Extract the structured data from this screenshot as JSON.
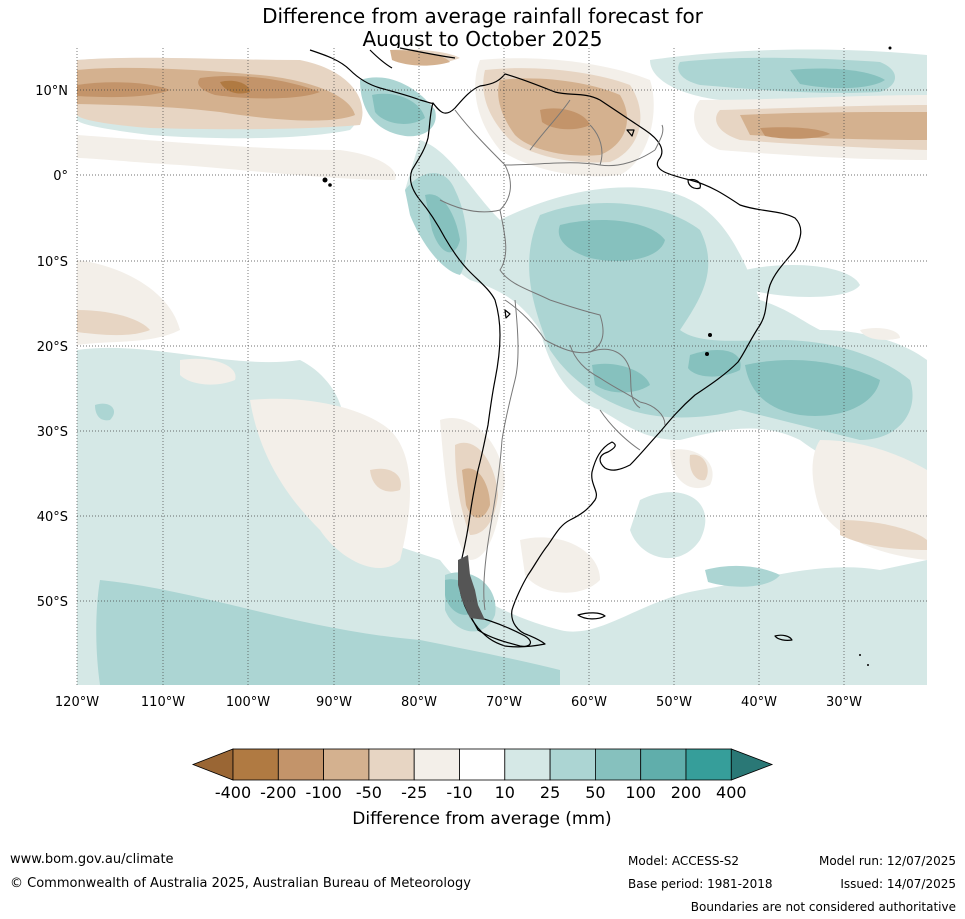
{
  "title": {
    "line1": "Difference from average rainfall forecast for",
    "line2": "August to October 2025"
  },
  "map": {
    "lat_labels": [
      "10°N",
      "0°",
      "10°S",
      "20°S",
      "30°S",
      "40°S",
      "50°S"
    ],
    "lon_labels": [
      "120°W",
      "110°W",
      "100°W",
      "90°W",
      "80°W",
      "70°W",
      "60°W",
      "50°W",
      "40°W",
      "30°W"
    ],
    "gridlines": "dotted"
  },
  "colorbar": {
    "labels": [
      "-400",
      "-200",
      "-100",
      "-50",
      "-25",
      "-10",
      "10",
      "25",
      "50",
      "100",
      "200",
      "400"
    ],
    "colors": [
      "#9a6634",
      "#b07a42",
      "#c3946a",
      "#d4b18f",
      "#e7d5c3",
      "#f3efe9",
      "#ffffff",
      "#d5e8e6",
      "#acd5d3",
      "#86c1be",
      "#60aeab",
      "#369e9a",
      "#2a7876"
    ],
    "title": "Difference from average (mm)"
  },
  "colors": {
    "ocean": "#ffffff",
    "coast": "#000000",
    "border": "#777777"
  },
  "footer": {
    "url": "www.bom.gov.au/climate",
    "copyright": "© Commonwealth of Australia 2025, Australian Bureau of Meteorology",
    "model": "Model: ACCESS-S2",
    "base_period": "Base period: 1981-2018",
    "model_run": "Model run: 12/07/2025",
    "issued": "Issued: 14/07/2025",
    "disclaimer": "Boundaries are not considered authoritative"
  }
}
